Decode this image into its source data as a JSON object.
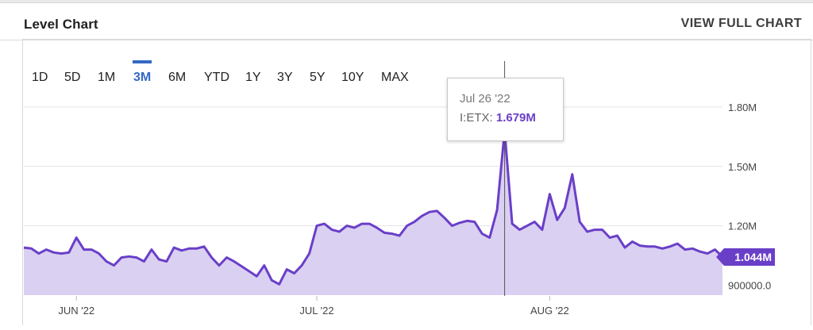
{
  "header": {
    "title": "Level Chart",
    "view_full_label": "VIEW FULL CHART"
  },
  "range_tabs": [
    {
      "label": "1D"
    },
    {
      "label": "5D"
    },
    {
      "label": "1M"
    },
    {
      "label": "3M",
      "active": true
    },
    {
      "label": "6M"
    },
    {
      "label": "YTD"
    },
    {
      "label": "1Y"
    },
    {
      "label": "3Y"
    },
    {
      "label": "5Y"
    },
    {
      "label": "10Y"
    },
    {
      "label": "MAX"
    }
  ],
  "tooltip": {
    "date": "Jul 26 '22",
    "series_label": "I:ETX:",
    "value": "1.679M"
  },
  "last_value_badge": "1.044M",
  "colors": {
    "line": "#6a3fc8",
    "fill": "#d8cdf0",
    "accent": "#3569c4"
  },
  "chart_data": {
    "type": "area",
    "title": "Level Chart",
    "series": [
      {
        "name": "I:ETX",
        "values": [
          1.09,
          1.085,
          1.06,
          1.08,
          1.065,
          1.06,
          1.065,
          1.14,
          1.08,
          1.08,
          1.06,
          1.02,
          1.0,
          1.04,
          1.045,
          1.04,
          1.02,
          1.08,
          1.03,
          1.02,
          1.09,
          1.075,
          1.085,
          1.085,
          1.095,
          1.04,
          1.0,
          1.04,
          1.02,
          0.995,
          0.97,
          0.945,
          1.0,
          0.925,
          0.905,
          0.98,
          0.96,
          1.0,
          1.06,
          1.2,
          1.21,
          1.18,
          1.17,
          1.2,
          1.19,
          1.21,
          1.21,
          1.19,
          1.165,
          1.16,
          1.15,
          1.2,
          1.22,
          1.25,
          1.27,
          1.275,
          1.24,
          1.2,
          1.215,
          1.225,
          1.22,
          1.16,
          1.14,
          1.28,
          1.679,
          1.21,
          1.18,
          1.2,
          1.22,
          1.18,
          1.36,
          1.23,
          1.29,
          1.46,
          1.22,
          1.17,
          1.18,
          1.18,
          1.14,
          1.15,
          1.09,
          1.12,
          1.1,
          1.095,
          1.095,
          1.085,
          1.095,
          1.11,
          1.08,
          1.085,
          1.07,
          1.06,
          1.08,
          1.044
        ]
      }
    ],
    "x_ticks": [
      "JUN '22",
      "JUL '22",
      "AUG '22"
    ],
    "y_ticks": [
      "1.80M",
      "1.50M",
      "1.20M",
      "900000.0"
    ],
    "y_tick_values": [
      1.8,
      1.5,
      1.2,
      0.9
    ],
    "ylim": [
      0.85,
      2.1
    ],
    "highlight": {
      "label": "Jul 26 '22",
      "value": 1.679
    },
    "last_value": 1.044,
    "grid": true,
    "ylabel": "",
    "xlabel": ""
  }
}
